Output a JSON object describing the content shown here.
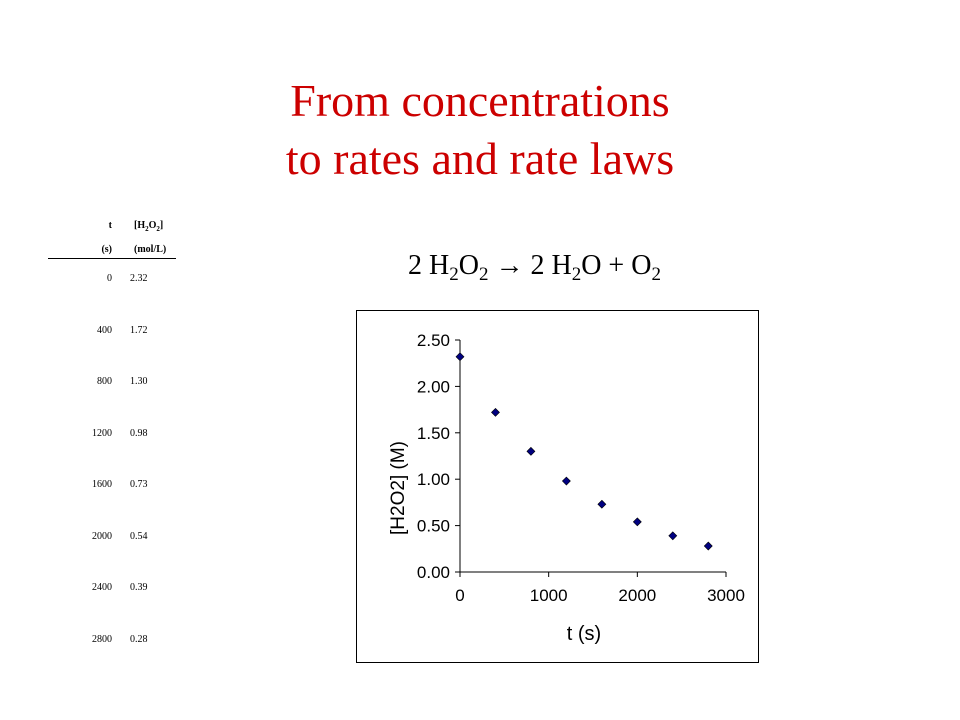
{
  "slide": {
    "title_line1": "From concentrations",
    "title_line2": "to rates and rate laws",
    "equation": {
      "coef1": "2 H",
      "sub1": "2",
      "mid1": "O",
      "sub2": "2",
      "arrow": " → 2 H",
      "sub3": "2",
      "mid2": "O + O",
      "sub4": "2"
    }
  },
  "table": {
    "col1_header": "t",
    "col2_header_prefix": "[H",
    "col2_header_sub1": "2",
    "col2_header_mid": "O",
    "col2_header_sub2": "2",
    "col2_header_suffix": "]",
    "col1_unit": "(s)",
    "col2_unit": "(mol/L)",
    "rows": [
      {
        "t": "0",
        "c": "2.32"
      },
      {
        "t": "400",
        "c": "1.72"
      },
      {
        "t": "800",
        "c": "1.30"
      },
      {
        "t": "1200",
        "c": "0.98"
      },
      {
        "t": "1600",
        "c": "0.73"
      },
      {
        "t": "2000",
        "c": "0.54"
      },
      {
        "t": "2400",
        "c": "0.39"
      },
      {
        "t": "2800",
        "c": "0.28"
      }
    ]
  },
  "chart_data": {
    "type": "scatter",
    "xlabel": "t (s)",
    "ylabel": "[H2O2] (M)",
    "xlim": [
      0,
      3000
    ],
    "ylim": [
      0,
      2.5
    ],
    "x_ticks": [
      "0",
      "1000",
      "2000",
      "3000"
    ],
    "y_ticks": [
      "0.00",
      "0.50",
      "1.00",
      "1.50",
      "2.00",
      "2.50"
    ],
    "grid": false,
    "marker_color": "#000080",
    "series": [
      {
        "x": [
          0,
          400,
          800,
          1200,
          1600,
          2000,
          2400,
          2800
        ],
        "y": [
          2.32,
          1.72,
          1.3,
          0.98,
          0.73,
          0.54,
          0.39,
          0.28
        ]
      }
    ]
  }
}
